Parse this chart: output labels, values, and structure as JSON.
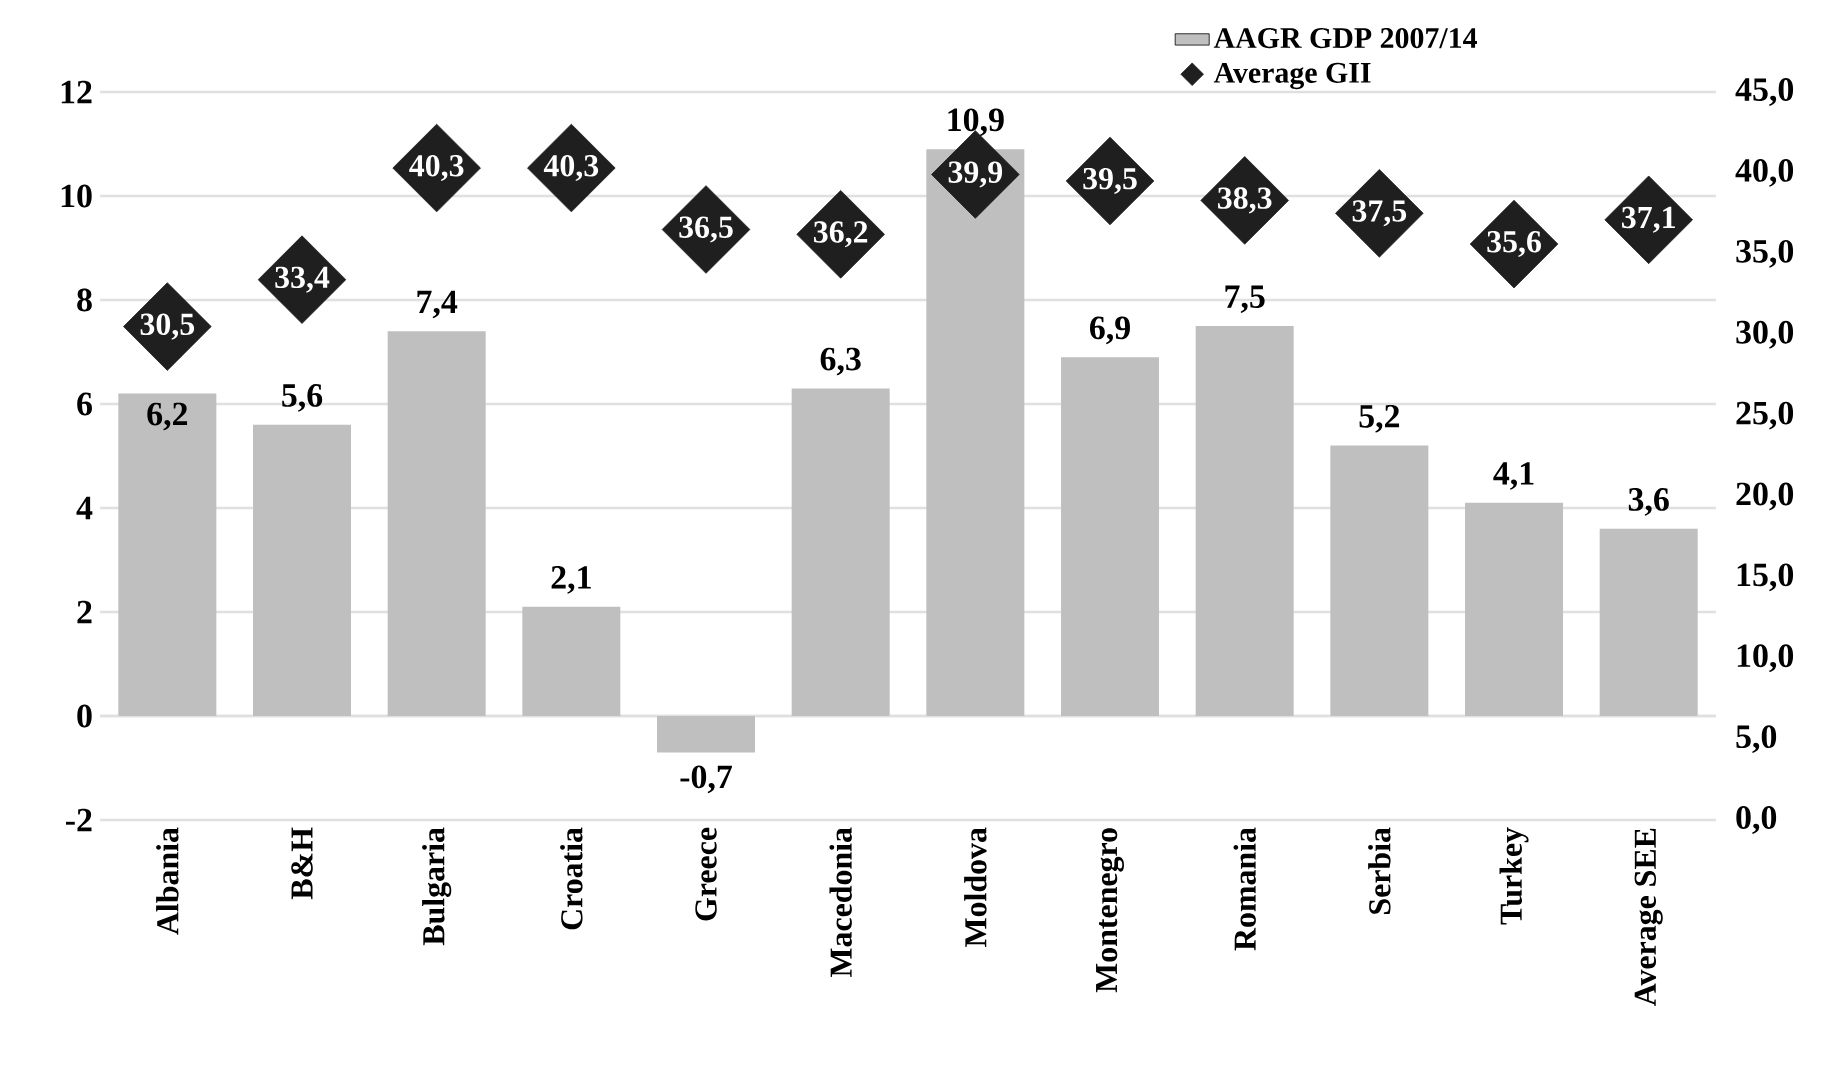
{
  "chart_data": {
    "type": "bar",
    "categories": [
      "Albania",
      "B&H",
      "Bulgaria",
      "Croatia",
      "Greece",
      "Macedonia",
      "Moldova",
      "Montenegro",
      "Romania",
      "Serbia",
      "Turkey",
      "Average SEE"
    ],
    "series": [
      {
        "name": "AAGR GDP 2007/14",
        "color": "#bfbfbf",
        "values": [
          6.2,
          5.6,
          7.4,
          2.1,
          -0.7,
          6.3,
          10.9,
          6.9,
          7.5,
          5.2,
          4.1,
          3.6
        ],
        "value_labels": [
          "6,2",
          "5,6",
          "7,4",
          "2,1",
          "-0,7",
          "6,3",
          "10,9",
          "6,9",
          "7,5",
          "5,2",
          "4,1",
          "3,6"
        ]
      },
      {
        "name": "Average GII",
        "type": "scatter",
        "axis": "y2",
        "color": "#1f1f1f",
        "values": [
          30.5,
          33.4,
          40.3,
          40.3,
          36.5,
          36.2,
          39.9,
          39.5,
          38.3,
          37.5,
          35.6,
          37.1
        ],
        "value_labels": [
          "30,5",
          "33,4",
          "40,3",
          "40,3",
          "36,5",
          "36,2",
          "39,9",
          "39,5",
          "38,3",
          "37,5",
          "35,6",
          "37,1"
        ]
      }
    ],
    "marker": "diamond",
    "ylim": [
      -2,
      12
    ],
    "yticks": [
      -2,
      0,
      2,
      4,
      6,
      8,
      10,
      12
    ],
    "y2lim": [
      0,
      45
    ],
    "y2ticks": [
      {
        "value": 0,
        "label": "0,0"
      },
      {
        "value": 5,
        "label": "5,0"
      },
      {
        "value": 10,
        "label": "10,0"
      },
      {
        "value": 15,
        "label": "15,0"
      },
      {
        "value": 20,
        "label": "20,0"
      },
      {
        "value": 25,
        "label": "25,0"
      },
      {
        "value": 30,
        "label": "30,0"
      },
      {
        "value": 35,
        "label": "35,0"
      },
      {
        "value": 40,
        "label": "40,0"
      },
      {
        "value": 45,
        "label": "45,0"
      }
    ],
    "grid": "y",
    "legend": "top right"
  }
}
